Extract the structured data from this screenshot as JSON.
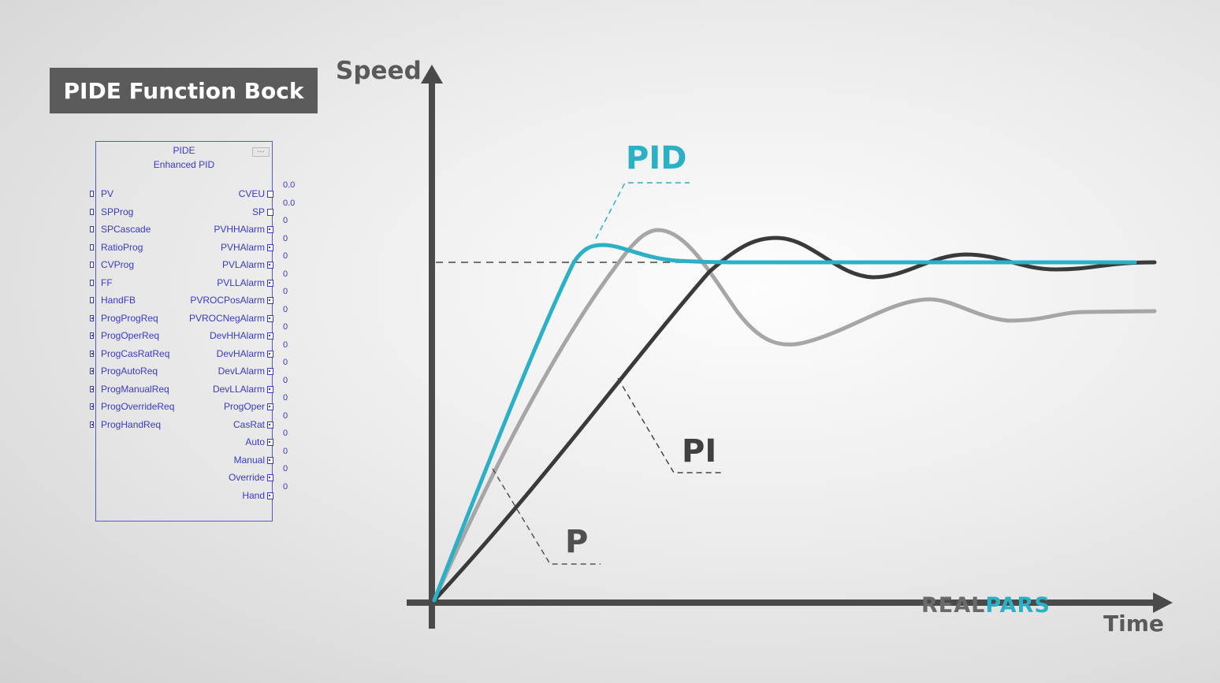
{
  "title": "PIDE Function Bock",
  "block": {
    "header_line1": "PIDE",
    "header_line2": "Enhanced PID",
    "inputs": [
      {
        "label": "PV",
        "kind": "real"
      },
      {
        "label": "SPProg",
        "kind": "real"
      },
      {
        "label": "SPCascade",
        "kind": "real"
      },
      {
        "label": "RatioProg",
        "kind": "real"
      },
      {
        "label": "CVProg",
        "kind": "real"
      },
      {
        "label": "FF",
        "kind": "real"
      },
      {
        "label": "HandFB",
        "kind": "real"
      },
      {
        "label": "ProgProgReq",
        "kind": "bool"
      },
      {
        "label": "ProgOperReq",
        "kind": "bool"
      },
      {
        "label": "ProgCasRatReq",
        "kind": "bool"
      },
      {
        "label": "ProgAutoReq",
        "kind": "bool"
      },
      {
        "label": "ProgManualReq",
        "kind": "bool"
      },
      {
        "label": "ProgOverrideReq",
        "kind": "bool"
      },
      {
        "label": "ProgHandReq",
        "kind": "bool"
      }
    ],
    "outputs": [
      {
        "label": "CVEU",
        "value": "0.0",
        "kind": "real"
      },
      {
        "label": "SP",
        "value": "0.0",
        "kind": "real"
      },
      {
        "label": "PVHHAlarm",
        "value": "0",
        "kind": "bool"
      },
      {
        "label": "PVHAlarm",
        "value": "0",
        "kind": "bool"
      },
      {
        "label": "PVLAlarm",
        "value": "0",
        "kind": "bool"
      },
      {
        "label": "PVLLAlarm",
        "value": "0",
        "kind": "bool"
      },
      {
        "label": "PVROCPosAlarm",
        "value": "0",
        "kind": "bool"
      },
      {
        "label": "PVROCNegAlarm",
        "value": "0",
        "kind": "bool"
      },
      {
        "label": "DevHHAlarm",
        "value": "0",
        "kind": "bool"
      },
      {
        "label": "DevHAlarm",
        "value": "0",
        "kind": "bool"
      },
      {
        "label": "DevLAlarm",
        "value": "0",
        "kind": "bool"
      },
      {
        "label": "DevLLAlarm",
        "value": "0",
        "kind": "bool"
      },
      {
        "label": "ProgOper",
        "value": "0",
        "kind": "bool"
      },
      {
        "label": "CasRat",
        "value": "0",
        "kind": "bool"
      },
      {
        "label": "Auto",
        "value": "0",
        "kind": "bool"
      },
      {
        "label": "Manual",
        "value": "0",
        "kind": "bool"
      },
      {
        "label": "Override",
        "value": "0",
        "kind": "bool"
      },
      {
        "label": "Hand",
        "value": "0",
        "kind": "bool"
      }
    ]
  },
  "chart": {
    "y_axis_label": "Speed",
    "x_axis_label": "Time",
    "curve_labels": {
      "pid": "PID",
      "pi": "PI",
      "p": "P"
    },
    "colors": {
      "pid": "#2cb0c6",
      "pi": "#3a3a3a",
      "p": "#a6a6a6",
      "axis": "#4a4a4a"
    }
  },
  "logo": {
    "part1": "REAL",
    "part2": "PARS"
  }
}
